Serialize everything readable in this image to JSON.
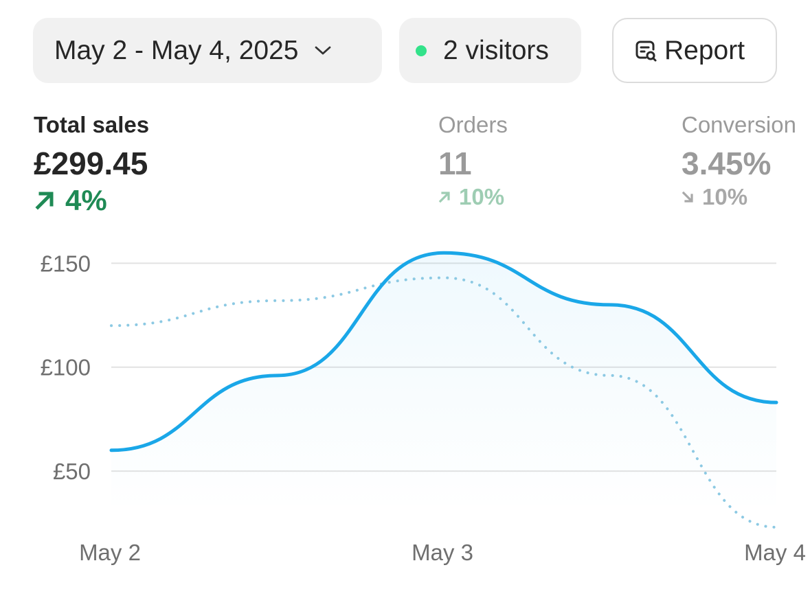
{
  "toolbar": {
    "date_range": "May 2 - May 4, 2025",
    "visitors": "2 visitors",
    "report": "Report"
  },
  "metrics": {
    "total_sales": {
      "label": "Total sales",
      "value": "£299.45",
      "change": "4%",
      "direction": "up"
    },
    "orders": {
      "label": "Orders",
      "value": "11",
      "change": "10%",
      "direction": "up"
    },
    "conversion": {
      "label": "Conversion",
      "value": "3.45%",
      "change": "10%",
      "direction": "down"
    }
  },
  "icons": {
    "date": "chevron-down-icon",
    "visitors": "status-dot-icon",
    "report": "report-search-icon",
    "up": "arrow-up-right-icon",
    "down": "arrow-down-right-icon"
  },
  "colors": {
    "accent": "#1aa7e8",
    "comparison": "#8cc9e3",
    "positive": "#1f8a55",
    "visitor_dot": "#33e28a"
  },
  "chart_data": {
    "type": "line",
    "x": [
      "May 2",
      "",
      "May 3",
      "",
      "May 4"
    ],
    "x_ticks": [
      "May 2",
      "May 3"
    ],
    "y_ticks": [
      "£50",
      "£100",
      "£150"
    ],
    "y_tick_values": [
      50,
      100,
      150
    ],
    "ylim": [
      15,
      165
    ],
    "grid": true,
    "series": [
      {
        "style": "solid",
        "values": [
          60,
          96,
          155,
          130,
          83
        ]
      },
      {
        "style": "dotted",
        "values": [
          120,
          132,
          143,
          96,
          23
        ]
      }
    ]
  }
}
